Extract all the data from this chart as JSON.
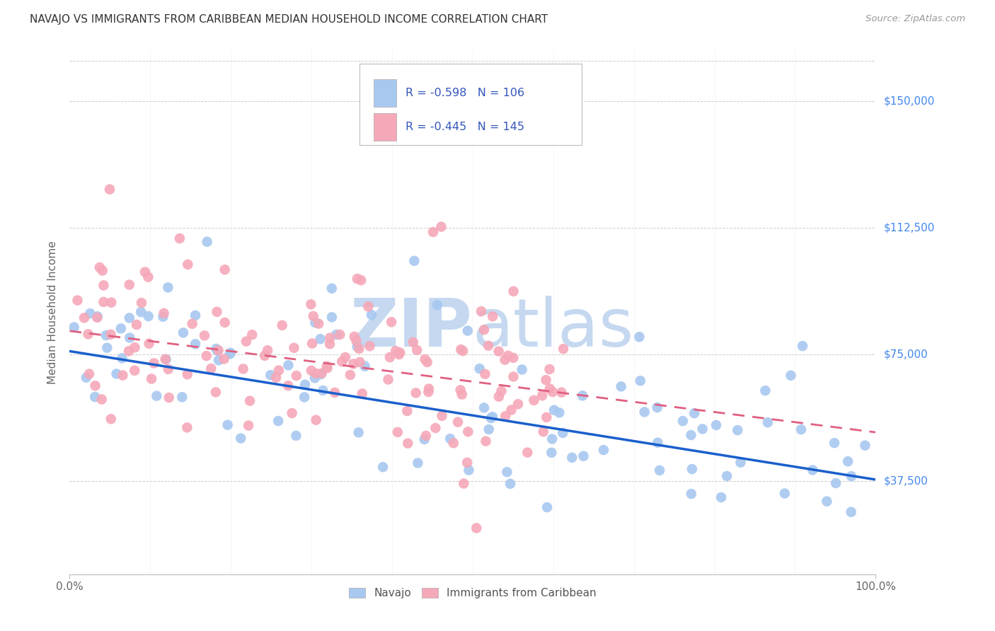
{
  "title": "NAVAJO VS IMMIGRANTS FROM CARIBBEAN MEDIAN HOUSEHOLD INCOME CORRELATION CHART",
  "source": "Source: ZipAtlas.com",
  "ylabel": "Median Household Income",
  "x_min": 0.0,
  "x_max": 1.0,
  "y_min": 10000,
  "y_max": 165000,
  "yticks": [
    37500,
    75000,
    112500,
    150000
  ],
  "ytick_labels": [
    "$37,500",
    "$75,000",
    "$112,500",
    "$150,000"
  ],
  "xtick_labels": [
    "0.0%",
    "100.0%"
  ],
  "navajo_R": -0.598,
  "navajo_N": 106,
  "caribbean_R": -0.445,
  "caribbean_N": 145,
  "navajo_color": "#A8C8F0",
  "caribbean_color": "#F5A8B8",
  "navajo_line_color": "#1a5fcc",
  "caribbean_line_color": "#E06080",
  "background_color": "#ffffff",
  "grid_color": "#cccccc",
  "title_color": "#333333",
  "ytick_color": "#4488ee",
  "watermark_color": "#c5d8f0",
  "legend_R_color": "#3355bb",
  "legend_label_navajo": "Navajo",
  "legend_label_caribbean": "Immigrants from Caribbean"
}
